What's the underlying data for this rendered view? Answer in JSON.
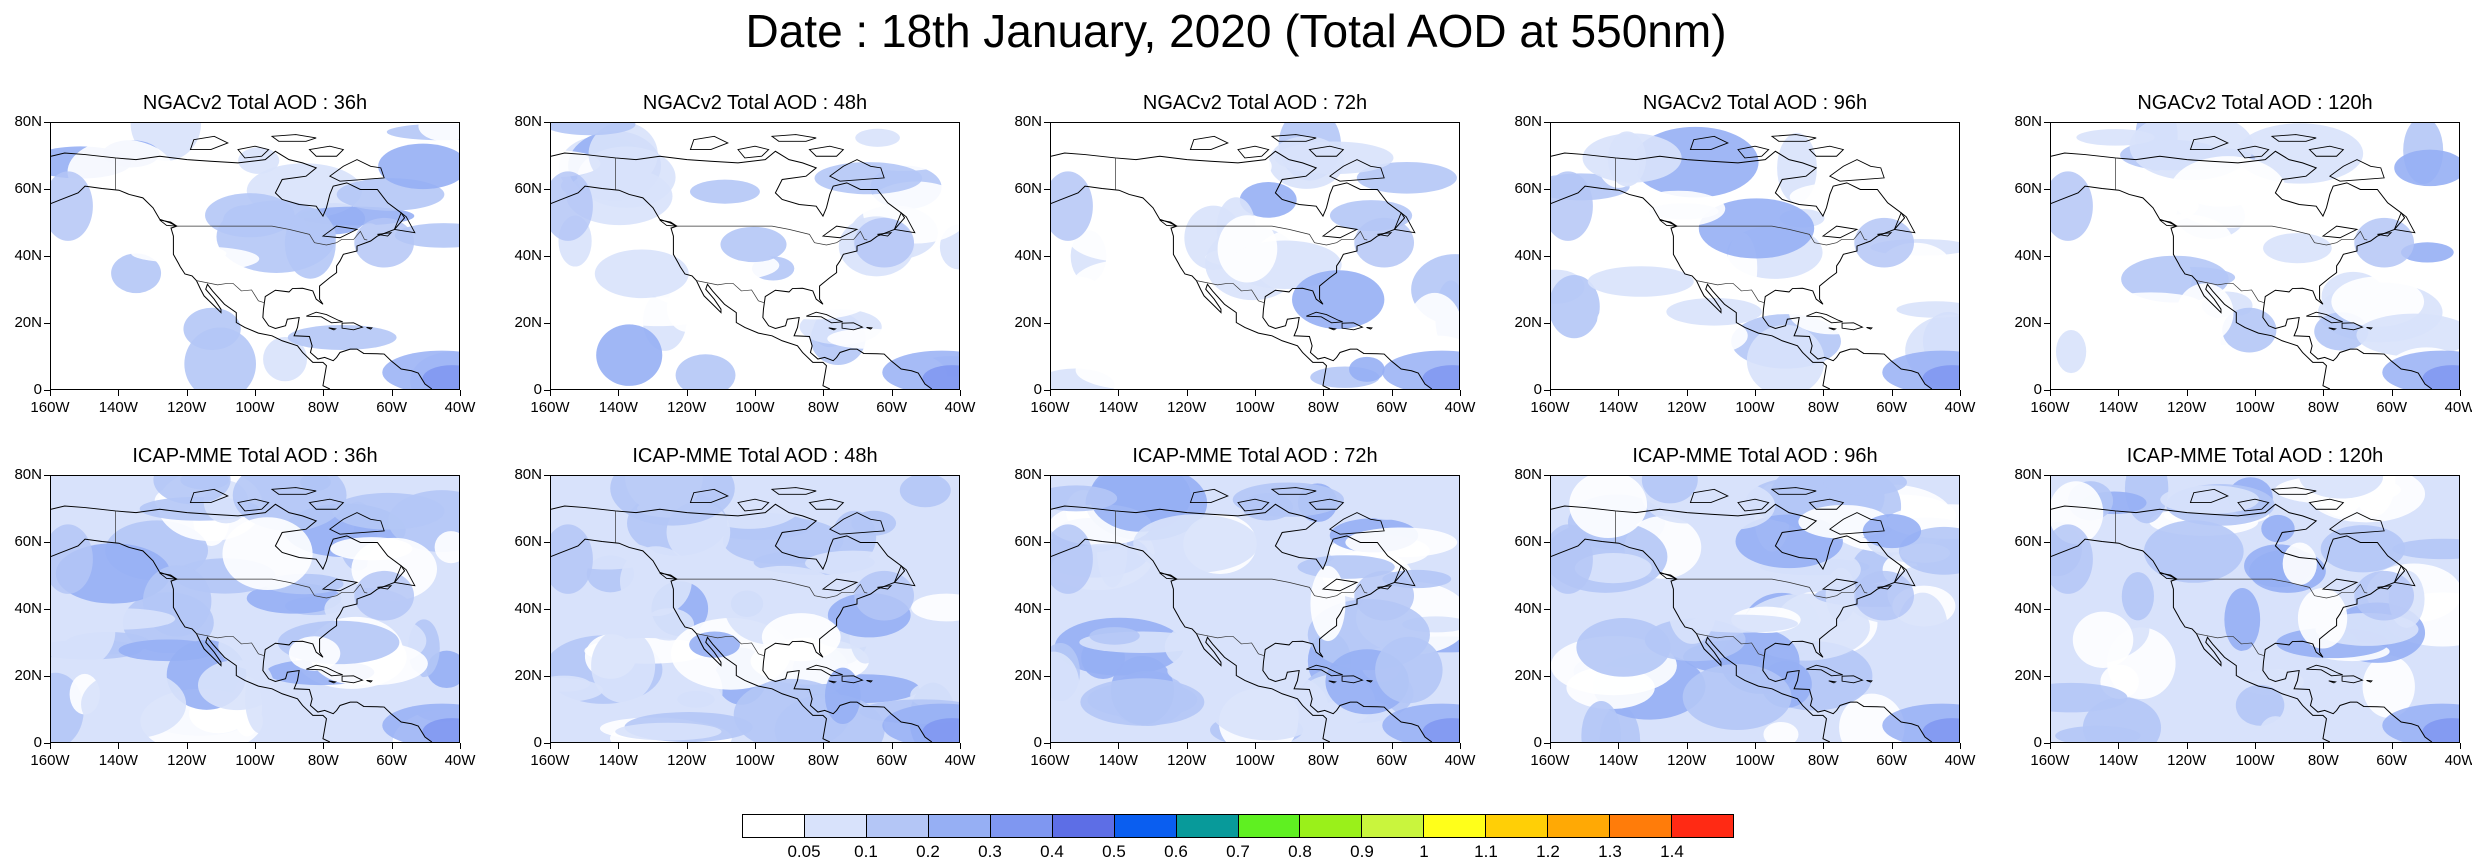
{
  "title": "Date : 18th January, 2020 (Total AOD at 550nm)",
  "panels": [
    {
      "title": "NGACv2 Total AOD : 36h"
    },
    {
      "title": "NGACv2 Total AOD : 48h"
    },
    {
      "title": "NGACv2 Total AOD : 72h"
    },
    {
      "title": "NGACv2 Total AOD : 96h"
    },
    {
      "title": "NGACv2 Total AOD : 120h"
    },
    {
      "title": "ICAP-MME Total AOD : 36h"
    },
    {
      "title": "ICAP-MME Total AOD : 48h"
    },
    {
      "title": "ICAP-MME Total AOD : 72h"
    },
    {
      "title": "ICAP-MME Total AOD : 96h"
    },
    {
      "title": "ICAP-MME Total AOD : 120h"
    }
  ],
  "lat_labels": [
    "80N",
    "60N",
    "40N",
    "20N",
    "0"
  ],
  "lon_labels": [
    "160W",
    "140W",
    "120W",
    "100W",
    "80W",
    "60W",
    "40W"
  ],
  "colorbar": {
    "labels": [
      "0.05",
      "0.1",
      "0.2",
      "0.3",
      "0.4",
      "0.5",
      "0.6",
      "0.7",
      "0.8",
      "0.9",
      "1",
      "1.1",
      "1.2",
      "1.3",
      "1.4"
    ],
    "colors": [
      "#ffffff",
      "#d8e2fb",
      "#b4c6f6",
      "#96aff4",
      "#7f97f1",
      "#5d6ee6",
      "#0a5ef0",
      "#089a9a",
      "#5ff021",
      "#9af01a",
      "#c9f53d",
      "#ffff1a",
      "#ffcf06",
      "#ffa905",
      "#ff7c0a",
      "#ff2a14"
    ]
  },
  "legend_position": "bottom"
}
